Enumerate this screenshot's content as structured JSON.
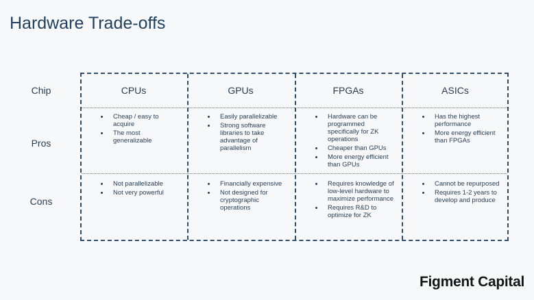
{
  "title": "Hardware Trade-offs",
  "table": {
    "row_labels": [
      "Chip",
      "Pros",
      "Cons"
    ],
    "columns": [
      {
        "header": "CPUs",
        "pros": [
          "Cheap / easy to acquire",
          "The most generalizable"
        ],
        "cons": [
          "Not parallelizable",
          "Not very powerful"
        ]
      },
      {
        "header": "GPUs",
        "pros": [
          "Easily parallelizable",
          "Strong software libraries to take advantage of parallelism"
        ],
        "cons": [
          "Financially expensive",
          "Not designed for cryptographic operations"
        ]
      },
      {
        "header": "FPGAs",
        "pros": [
          "Hardware can be programmed specifically for ZK operations",
          "Cheaper than GPUs",
          "More energy efficient than GPUs"
        ],
        "cons": [
          "Requires knowledge of low-level hardware to maximize performance",
          "Requires R&D to optimize for ZK"
        ]
      },
      {
        "header": "ASICs",
        "pros": [
          "Has the highest performance",
          "More energy efficient than FPGAs"
        ],
        "cons": [
          "Cannot be repurposed",
          "Requires 1-2 years to develop and produce"
        ]
      }
    ]
  },
  "brand": "Figment Capital"
}
